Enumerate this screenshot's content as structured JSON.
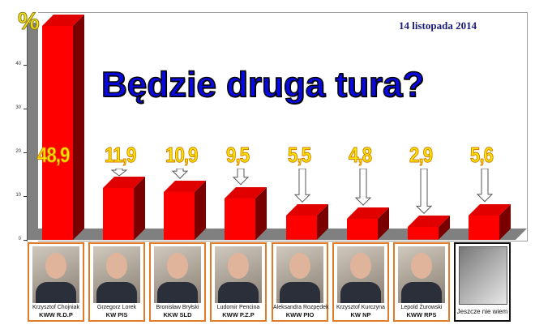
{
  "header": {
    "title": "Będzie druga tura?",
    "date": "14 listopada 2014",
    "unit_symbol": "%"
  },
  "axis": {
    "ticks": [
      "0",
      "10",
      "20",
      "30",
      "40"
    ]
  },
  "candidates": [
    {
      "name": "Krzysztof Chojniak",
      "party": "KWW R.D.P",
      "value": 48.9,
      "label": "48,9"
    },
    {
      "name": "Grzegorz Lorek",
      "party": "KW PIS",
      "value": 11.9,
      "label": "11,9"
    },
    {
      "name": "Bronisław Bryłski",
      "party": "KKW SLD",
      "value": 10.9,
      "label": "10,9"
    },
    {
      "name": "Ludomir Pencina",
      "party": "KWW P.Z.P",
      "value": 9.5,
      "label": "9,5"
    },
    {
      "name": "Aleksandra Rozpędek",
      "party": "KWW PIO",
      "value": 5.5,
      "label": "5,5"
    },
    {
      "name": "Krzysztof Kurczyna",
      "party": "KW NP",
      "value": 4.8,
      "label": "4,8"
    },
    {
      "name": "Lepold Żurowski",
      "party": "KWW RPS",
      "value": 2.9,
      "label": "2,9"
    },
    {
      "name": "Jeszcze nie wiem",
      "party": "",
      "value": 5.6,
      "label": "5,6"
    }
  ],
  "colors": {
    "bar_front": "#ff0000",
    "bar_side": "#7a0000",
    "value_label": "#ffe800",
    "title": "#0a0adf",
    "card_border": "#e07b2a"
  },
  "chart_data": {
    "type": "bar",
    "title": "Będzie druga tura?",
    "subtitle": "14 listopada 2014",
    "categories": [
      "Krzysztof Chojniak (KWW R.D.P)",
      "Grzegorz Lorek (KW PIS)",
      "Bronisław Bryłski (KKW SLD)",
      "Ludomir Pencina (KWW P.Z.P)",
      "Aleksandra Rozpędek (KWW PIO)",
      "Krzysztof Kurczyna (KW NP)",
      "Lepold Żurowski (KWW RPS)",
      "Jeszcze nie wiem"
    ],
    "values": [
      48.9,
      11.9,
      10.9,
      9.5,
      5.5,
      4.8,
      2.9,
      5.6
    ],
    "xlabel": "",
    "ylabel": "%",
    "ylim": [
      0,
      50
    ],
    "yticks": [
      0,
      10,
      20,
      30,
      40
    ],
    "grid": false,
    "legend": "none",
    "style": "3d"
  }
}
